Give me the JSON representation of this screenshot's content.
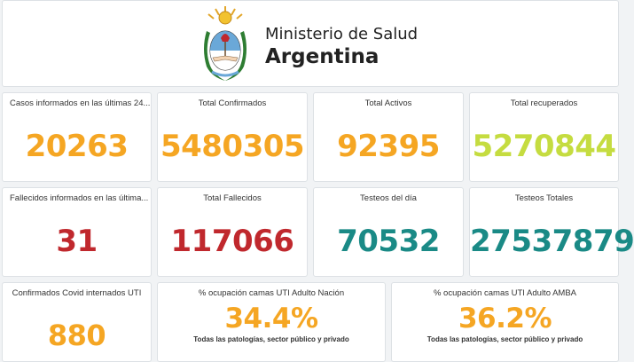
{
  "header": {
    "line1": "Ministerio de Salud",
    "line2": "Argentina",
    "logo": "escudo-argentina"
  },
  "colors": {
    "orange": "#f5a623",
    "lime": "#c5dc40",
    "red": "#c0282d",
    "teal": "#1a8a86"
  },
  "cards": [
    {
      "title": "Casos informados en las últimas 24...",
      "value": "20263",
      "color": "orange"
    },
    {
      "title": "Total Confirmados",
      "value": "5480305",
      "color": "orange"
    },
    {
      "title": "Total Activos",
      "value": "92395",
      "color": "orange"
    },
    {
      "title": "Total recuperados",
      "value": "5270844",
      "color": "lime"
    },
    {
      "title": "Fallecidos informados en las última...",
      "value": "31",
      "color": "red"
    },
    {
      "title": "Total Fallecidos",
      "value": "117066",
      "color": "red"
    },
    {
      "title": "Testeos del día",
      "value": "70532",
      "color": "teal"
    },
    {
      "title": "Testeos Totales",
      "value": "27537879",
      "color": "teal"
    },
    {
      "title": "Confirmados Covid internados UTI",
      "value": "880",
      "color": "orange"
    },
    {
      "title": "% ocupación camas UTI Adulto Nación",
      "value": "34.4%",
      "subtitle": "Todas las patologías, sector público y privado",
      "color": "orange"
    },
    {
      "title": "% ocupación camas UTI Adulto AMBA",
      "value": "36.2%",
      "subtitle": "Todas las patologías, sector público y privado",
      "color": "orange"
    }
  ]
}
